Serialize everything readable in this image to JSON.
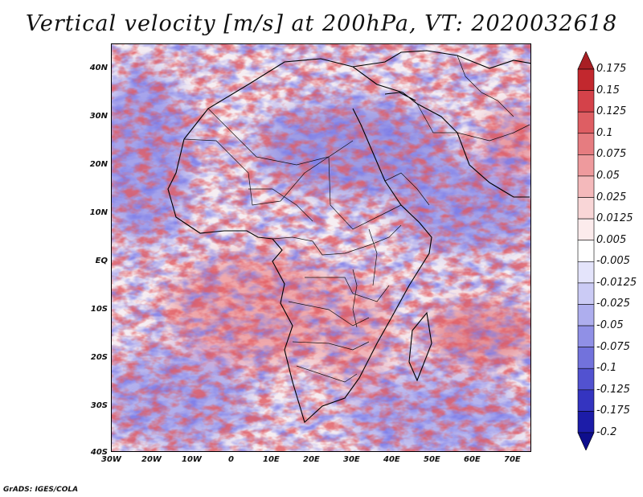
{
  "title": "Vertical velocity [m/s] at 200hPa, VT: 2020032618",
  "credit": "GrADS: IGES/COLA",
  "map": {
    "lat_labels": [
      "40N",
      "30N",
      "20N",
      "10N",
      "EQ",
      "10S",
      "20S",
      "30S",
      "40S"
    ],
    "lon_labels": [
      "30W",
      "20W",
      "10W",
      "0",
      "10E",
      "20E",
      "30E",
      "40E",
      "50E",
      "60E",
      "70E"
    ],
    "lon_range": [
      -30,
      75
    ],
    "lat_range": [
      -40,
      45
    ],
    "field": "vertical-velocity",
    "level": "200hPa"
  },
  "colorbar": {
    "labels": [
      "0.175",
      "0.15",
      "0.125",
      "0.1",
      "0.075",
      "0.05",
      "0.025",
      "0.0125",
      "0.005",
      "-0.005",
      "-0.0125",
      "-0.025",
      "-0.05",
      "-0.075",
      "-0.1",
      "-0.125",
      "-0.175",
      "-0.2"
    ],
    "colors": [
      "#a81f24",
      "#c2282e",
      "#d4424a",
      "#de5e63",
      "#e67c80",
      "#ee9a9d",
      "#f4b9bb",
      "#f9d6d7",
      "#fcebec",
      "#ffffff",
      "#e4e4fb",
      "#cbcbf5",
      "#aeaeee",
      "#9090e6",
      "#7272dc",
      "#5252d0",
      "#3434c0",
      "#1c1ca8",
      "#0e0e8c"
    ]
  }
}
